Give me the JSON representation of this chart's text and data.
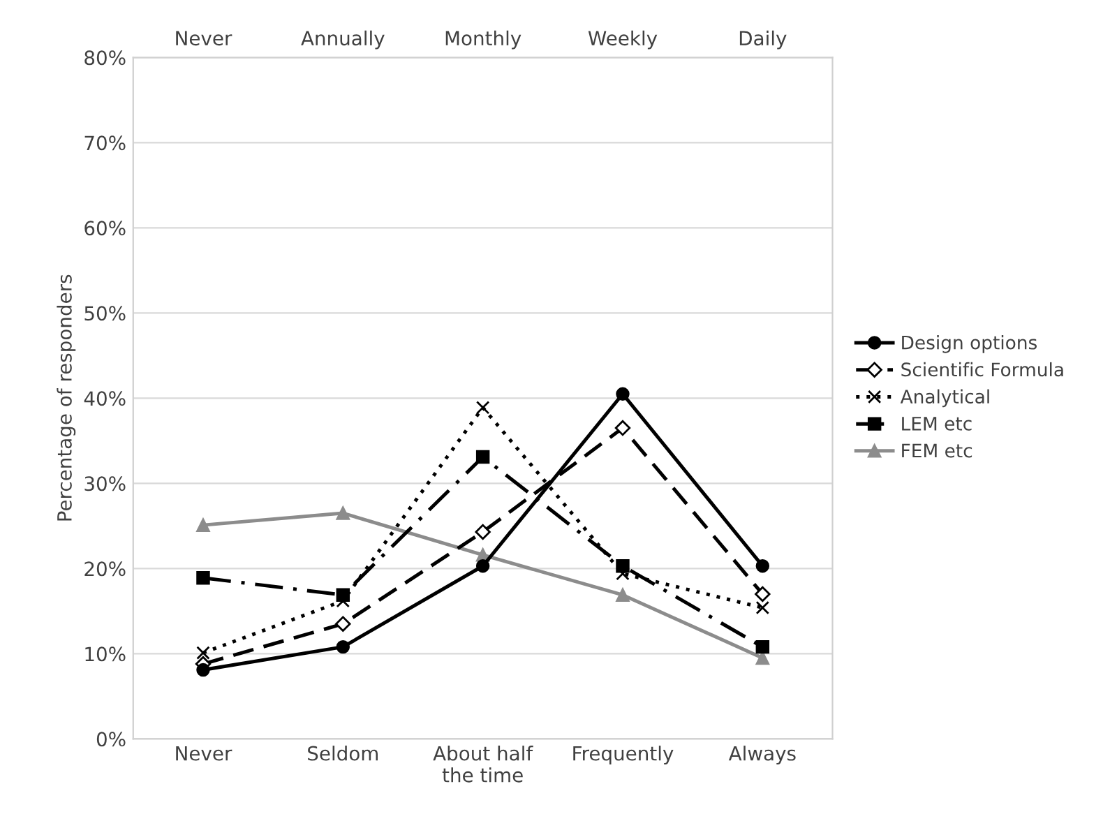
{
  "chart_data": {
    "type": "line",
    "categories": [
      "Never",
      "Seldom",
      "About half\nthe time",
      "Frequently",
      "Always"
    ],
    "annotations": [
      "Never",
      "Annually",
      "Monthly",
      "Weekly",
      "Daily"
    ],
    "ylabel": "Percentage of responders",
    "ylim": [
      0,
      80
    ],
    "yticks": [
      {
        "value": 0,
        "label": "0%"
      },
      {
        "value": 10,
        "label": "10%"
      },
      {
        "value": 20,
        "label": "20%"
      },
      {
        "value": 30,
        "label": "30%"
      },
      {
        "value": 40,
        "label": "40%"
      },
      {
        "value": 50,
        "label": "50%"
      },
      {
        "value": 60,
        "label": "60%"
      },
      {
        "value": 70,
        "label": "70%"
      },
      {
        "value": 80,
        "label": "80%"
      }
    ],
    "grid": "y",
    "legend": "right",
    "series": [
      {
        "name": "Design options",
        "color": "#000000",
        "marker": "circle",
        "line_style": "solid",
        "values": [
          8.1,
          10.8,
          20.3,
          40.5,
          20.3
        ]
      },
      {
        "name": "Scientific Formula",
        "color": "#000000",
        "marker": "diamond",
        "line_style": "dashed",
        "values": [
          8.8,
          13.5,
          24.3,
          36.5,
          17.0
        ]
      },
      {
        "name": "Analytical",
        "color": "#000000",
        "marker": "cross",
        "line_style": "dotted",
        "values": [
          10.1,
          16.2,
          38.9,
          19.4,
          15.4
        ]
      },
      {
        "name": "LEM etc",
        "color": "#000000",
        "marker": "square",
        "line_style": "dashdot",
        "values": [
          18.9,
          16.9,
          33.1,
          20.3,
          10.8
        ]
      },
      {
        "name": "FEM etc",
        "color": "#8c8c8c",
        "marker": "triangle",
        "line_style": "solid",
        "values": [
          25.1,
          26.5,
          21.6,
          16.9,
          9.5
        ]
      }
    ]
  }
}
